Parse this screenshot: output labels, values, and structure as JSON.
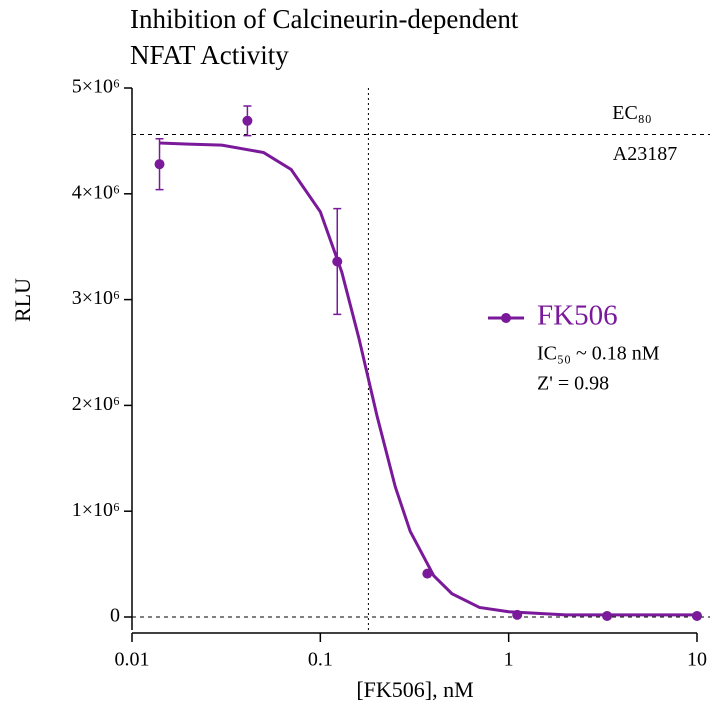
{
  "chart_data": {
    "type": "scatter",
    "title": [
      "Inhibition of Calcineurin-dependent",
      "NFAT Activity"
    ],
    "x_label": "[FK506], nM",
    "y_label": "RLU",
    "x_scale": "log",
    "xlim": [
      0.01,
      10
    ],
    "xticks": [
      0.01,
      0.1,
      1,
      10
    ],
    "ylim": [
      0,
      5000000
    ],
    "yticks": [
      {
        "value": 0,
        "label": "0"
      },
      {
        "value": 1000000,
        "label": "1×10⁶"
      },
      {
        "value": 2000000,
        "label": "2×10⁶"
      },
      {
        "value": 3000000,
        "label": "3×10⁶"
      },
      {
        "value": 4000000,
        "label": "4×10⁶"
      },
      {
        "value": 5000000,
        "label": "5×10⁶"
      }
    ],
    "series": [
      {
        "name": "FK506",
        "color": "#7a1a9a",
        "x": [
          0.014,
          0.041,
          0.123,
          0.37,
          1.11,
          3.33,
          10
        ],
        "values": [
          4280000,
          4690000,
          3360000,
          410000,
          20000,
          10000,
          10000
        ],
        "errors": [
          240000,
          140000,
          500000,
          null,
          null,
          null,
          null
        ],
        "fit": {
          "x": [
            0.014,
            0.02,
            0.03,
            0.05,
            0.07,
            0.1,
            0.13,
            0.16,
            0.18,
            0.2,
            0.25,
            0.3,
            0.4,
            0.5,
            0.7,
            1,
            2,
            5,
            10
          ],
          "values": [
            4480000,
            4470000,
            4460000,
            4390000,
            4230000,
            3830000,
            3260000,
            2640000,
            2250000,
            1900000,
            1230000,
            810000,
            390000,
            220000,
            90000,
            50000,
            20000,
            20000,
            20000
          ]
        }
      }
    ],
    "legend_position": "right",
    "annotations": [
      "IC₅₀ ~ 0.18 nM",
      "Z' = 0.98"
    ],
    "reference_lines": [
      {
        "axis": "y",
        "value": 4560000,
        "style": "dashed",
        "label": "EC₈₀",
        "sublabel": "A23187"
      },
      {
        "axis": "y",
        "value": 0,
        "style": "dashed"
      },
      {
        "axis": "x",
        "value": 0.18,
        "style": "dotted"
      }
    ]
  }
}
